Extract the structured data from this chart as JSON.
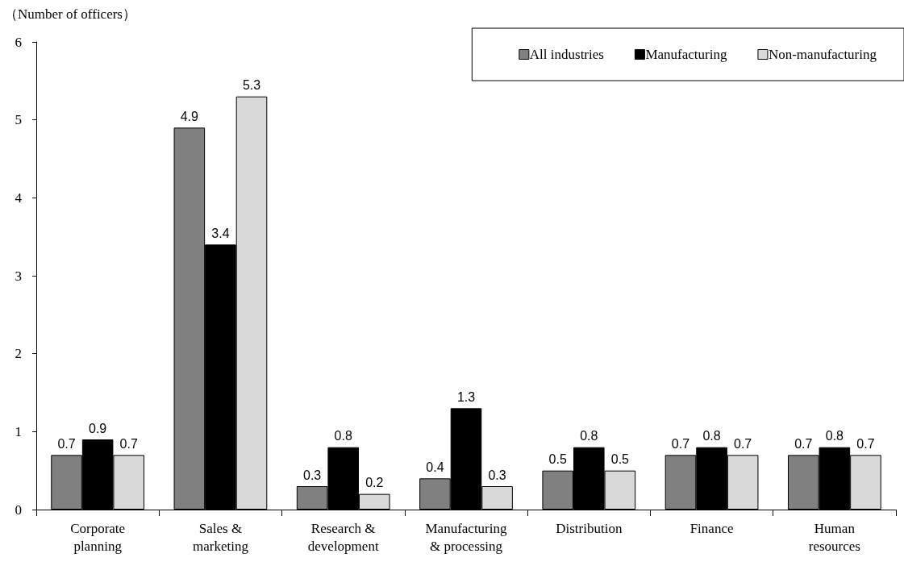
{
  "chart_data": {
    "type": "bar",
    "ylabel": "（Number of officers）",
    "categories": [
      "Corporate\nplanning",
      "Sales &\nmarketing",
      "Research &\ndevelopment",
      "Manufacturing\n& processing",
      "Distribution",
      "Finance",
      "Human\nresources"
    ],
    "series": [
      {
        "name": "All industries",
        "color": "#808080",
        "values": [
          0.7,
          4.9,
          0.3,
          0.4,
          0.5,
          0.7,
          0.7
        ]
      },
      {
        "name": "Manufacturing",
        "color": "#000000",
        "values": [
          0.9,
          3.4,
          0.8,
          1.3,
          0.8,
          0.8,
          0.8
        ]
      },
      {
        "name": "Non-manufacturing",
        "color": "#d9d9d9",
        "values": [
          0.7,
          5.3,
          0.2,
          0.3,
          0.5,
          0.7,
          0.7
        ]
      }
    ],
    "ylim": [
      0,
      6
    ],
    "yticks": [
      0,
      1,
      2,
      3,
      4,
      5,
      6
    ],
    "grid": false,
    "legend": "top right",
    "data_labels": true
  }
}
